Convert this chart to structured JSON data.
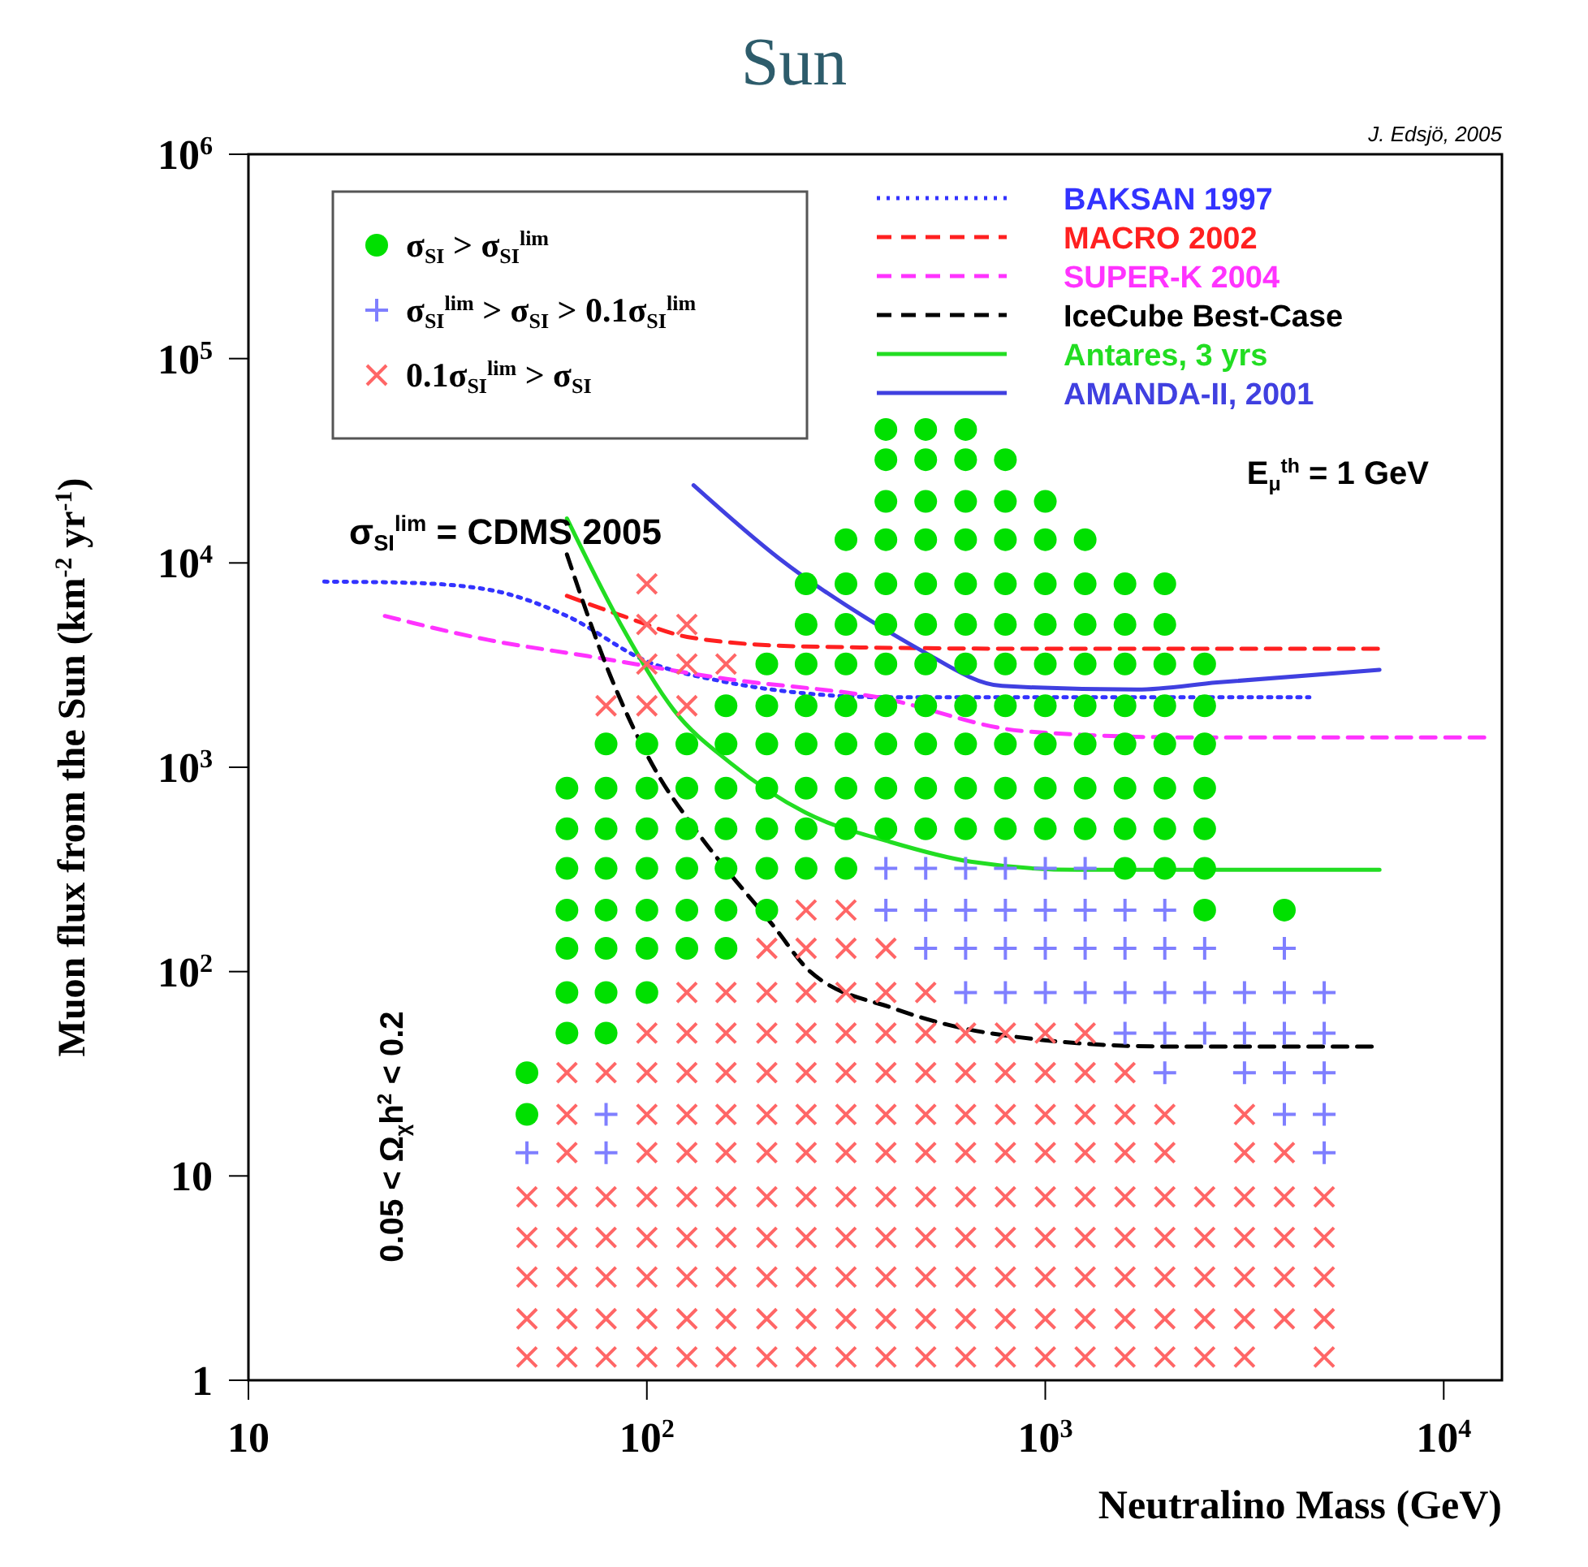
{
  "chart_data": {
    "type": "scatter",
    "title": "Sun",
    "xlabel": "Neutralino Mass (GeV)",
    "ylabel": "Muon flux from the Sun (km$^{-2}$ yr$^{-1}$)",
    "log": "xy",
    "legend": "top",
    "xlim": [
      10,
      14000
    ],
    "ylim": [
      1,
      1000000
    ],
    "xticks": [
      10,
      {
        "value": 100,
        "label": "10$^{2}$"
      },
      {
        "value": 1000,
        "label": "10$^{3}$"
      },
      {
        "value": 10000,
        "label": "10$^{4}$"
      }
    ],
    "yticks": [
      1,
      10,
      {
        "value": 100,
        "label": "10$^{2}$"
      },
      {
        "value": 1000,
        "label": "10$^{3}$"
      },
      {
        "value": 10000,
        "label": "10$^{4}$"
      },
      {
        "value": 100000,
        "label": "10$^{5}$"
      },
      {
        "value": 1000000,
        "label": "10$^{6}$"
      }
    ],
    "annotations": [
      "J. Edsjö, 2005",
      "σ$_{SI}$$^{lim}$ = CDMS 2005",
      "E$_{μ}$$^{th}$ = 1 GeV",
      "0.05 < Ω$_{χ}$h$^{2}$ < 0.2"
    ],
    "series": [
      {
        "name": "σ$_{SI}$ > σ$_{SI}$$^{lim}$",
        "color": "#00e000",
        "marker": "circle",
        "x": [
          50,
          50,
          63,
          63,
          63,
          63,
          63,
          63,
          63,
          79,
          79,
          79,
          79,
          79,
          79,
          79,
          79,
          100,
          100,
          100,
          100,
          100,
          100,
          100,
          126,
          126,
          126,
          126,
          126,
          126,
          158,
          158,
          158,
          158,
          158,
          158,
          158,
          200,
          200,
          200,
          200,
          200,
          200,
          200,
          251,
          251,
          251,
          251,
          251,
          251,
          251,
          251,
          316,
          316,
          316,
          316,
          316,
          316,
          316,
          316,
          316,
          398,
          398,
          398,
          398,
          398,
          398,
          398,
          398,
          398,
          398,
          398,
          501,
          501,
          501,
          501,
          501,
          501,
          501,
          501,
          501,
          501,
          501,
          631,
          631,
          631,
          631,
          631,
          631,
          631,
          631,
          631,
          631,
          631,
          794,
          794,
          794,
          794,
          794,
          794,
          794,
          794,
          794,
          794,
          1000,
          1000,
          1000,
          1000,
          1000,
          1000,
          1000,
          1000,
          1000,
          1259,
          1259,
          1259,
          1259,
          1259,
          1259,
          1259,
          1259,
          1585,
          1585,
          1585,
          1585,
          1585,
          1585,
          1585,
          1585,
          1995,
          1995,
          1995,
          1995,
          1995,
          1995,
          1995,
          1995,
          2512,
          2512,
          2512,
          2512,
          2512,
          2512,
          2512,
          3981
        ],
        "values": [
          20,
          32,
          50,
          79,
          130,
          200,
          320,
          500,
          790,
          50,
          79,
          130,
          200,
          320,
          500,
          790,
          1300,
          79,
          130,
          200,
          320,
          500,
          790,
          1300,
          130,
          200,
          320,
          500,
          790,
          1300,
          130,
          200,
          320,
          500,
          790,
          1300,
          2000,
          200,
          320,
          500,
          790,
          1300,
          2000,
          3200,
          320,
          500,
          790,
          1300,
          2000,
          3200,
          5000,
          7900,
          320,
          500,
          790,
          1300,
          2000,
          3200,
          5000,
          7900,
          13000,
          500,
          790,
          1300,
          2000,
          3200,
          5000,
          7900,
          13000,
          20000,
          32000,
          45000,
          500,
          790,
          1300,
          2000,
          3200,
          5000,
          7900,
          13000,
          20000,
          32000,
          45000,
          500,
          790,
          1300,
          2000,
          3200,
          5000,
          7900,
          13000,
          20000,
          32000,
          45000,
          500,
          790,
          1300,
          2000,
          3200,
          5000,
          7900,
          13000,
          20000,
          32000,
          500,
          790,
          1300,
          2000,
          3200,
          5000,
          7900,
          13000,
          20000,
          500,
          790,
          1300,
          2000,
          3200,
          5000,
          7900,
          13000,
          320,
          500,
          790,
          1300,
          2000,
          3200,
          5000,
          7900,
          320,
          500,
          790,
          1300,
          2000,
          3200,
          5000,
          7900,
          200,
          320,
          500,
          790,
          1300,
          2000,
          3200,
          200
        ]
      },
      {
        "name": "σ$_{SI}$$^{lim}$ > σ$_{SI}$ > 0.1σ$_{SI}$$^{lim}$",
        "color": "#7f7fff",
        "x": [
          50,
          79,
          79,
          398,
          398,
          501,
          501,
          501,
          631,
          631,
          631,
          631,
          794,
          794,
          794,
          794,
          1000,
          1000,
          1000,
          1000,
          1259,
          1259,
          1259,
          1259,
          1585,
          1585,
          1585,
          1585,
          1995,
          1995,
          1995,
          1995,
          1995,
          2512,
          2512,
          2512,
          3162,
          3162,
          3162,
          3981,
          3981,
          3981,
          3981,
          3981,
          5012,
          5012,
          5012,
          5012,
          5012
        ],
        "values": [
          13,
          13,
          20,
          200,
          320,
          130,
          200,
          320,
          79,
          130,
          200,
          320,
          79,
          130,
          200,
          320,
          79,
          130,
          200,
          320,
          79,
          130,
          200,
          320,
          50,
          79,
          130,
          200,
          32,
          50,
          79,
          130,
          200,
          50,
          79,
          130,
          32,
          50,
          79,
          20,
          32,
          50,
          79,
          130,
          13,
          20,
          32,
          50,
          79
        ]
      },
      {
        "name": "0.1σ$_{SI}$$^{lim}$ > σ$_{SI}$",
        "color": "#ff6666",
        "marker": "cross",
        "x": [
          50,
          50,
          50,
          50,
          50,
          63,
          63,
          63,
          63,
          63,
          63,
          63,
          63,
          79,
          79,
          79,
          79,
          79,
          79,
          79,
          100,
          100,
          100,
          100,
          100,
          100,
          100,
          100,
          100,
          100,
          100,
          100,
          100,
          126,
          126,
          126,
          126,
          126,
          126,
          126,
          126,
          126,
          126,
          126,
          126,
          126,
          158,
          158,
          158,
          158,
          158,
          158,
          158,
          158,
          158,
          158,
          158,
          200,
          200,
          200,
          200,
          200,
          200,
          200,
          200,
          200,
          200,
          200,
          251,
          251,
          251,
          251,
          251,
          251,
          251,
          251,
          251,
          251,
          251,
          251,
          316,
          316,
          316,
          316,
          316,
          316,
          316,
          316,
          316,
          316,
          316,
          316,
          398,
          398,
          398,
          398,
          398,
          398,
          398,
          398,
          398,
          398,
          398,
          501,
          501,
          501,
          501,
          501,
          501,
          501,
          501,
          501,
          501,
          631,
          631,
          631,
          631,
          631,
          631,
          631,
          631,
          631,
          794,
          794,
          794,
          794,
          794,
          794,
          794,
          794,
          794,
          1000,
          1000,
          1000,
          1000,
          1000,
          1000,
          1000,
          1000,
          1000,
          1259,
          1259,
          1259,
          1259,
          1259,
          1259,
          1259,
          1259,
          1259,
          1585,
          1585,
          1585,
          1585,
          1585,
          1585,
          1585,
          1585,
          1995,
          1995,
          1995,
          1995,
          1995,
          1995,
          1995,
          2512,
          2512,
          2512,
          2512,
          2512,
          3162,
          3162,
          3162,
          3162,
          3162,
          3162,
          3162,
          3981,
          3981,
          3981,
          3981,
          3981,
          5012,
          5012,
          5012,
          5012,
          5012
        ],
        "values": [
          1.3,
          2,
          3.2,
          5,
          7.9,
          1.3,
          2,
          3.2,
          5,
          7.9,
          13,
          20,
          32,
          1.3,
          2,
          3.2,
          5,
          7.9,
          32,
          2000,
          1.3,
          2,
          3.2,
          5,
          7.9,
          13,
          20,
          32,
          50,
          2000,
          3200,
          5000,
          7900,
          1.3,
          2,
          3.2,
          5,
          7.9,
          13,
          20,
          32,
          50,
          79,
          2000,
          3200,
          5000,
          1.3,
          2,
          3.2,
          5,
          7.9,
          13,
          20,
          32,
          50,
          79,
          3200,
          1.3,
          2,
          3.2,
          5,
          7.9,
          13,
          20,
          32,
          50,
          79,
          130,
          1.3,
          2,
          3.2,
          5,
          7.9,
          13,
          20,
          32,
          50,
          79,
          130,
          200,
          1.3,
          2,
          3.2,
          5,
          7.9,
          13,
          20,
          32,
          50,
          79,
          130,
          200,
          1.3,
          2,
          3.2,
          5,
          7.9,
          13,
          20,
          32,
          50,
          79,
          130,
          1.3,
          2,
          3.2,
          5,
          7.9,
          13,
          20,
          32,
          50,
          79,
          1.3,
          2,
          3.2,
          5,
          7.9,
          13,
          20,
          32,
          50,
          1.3,
          2,
          3.2,
          5,
          7.9,
          13,
          20,
          32,
          50,
          1.3,
          2,
          3.2,
          5,
          7.9,
          13,
          20,
          32,
          50,
          1.3,
          2,
          3.2,
          5,
          7.9,
          13,
          20,
          32,
          50,
          1.3,
          2,
          3.2,
          5,
          7.9,
          13,
          20,
          32,
          1.3,
          2,
          3.2,
          5,
          7.9,
          13,
          20,
          1.3,
          2,
          3.2,
          5,
          7.9,
          1.3,
          2,
          3.2,
          5,
          7.9,
          13,
          20,
          2,
          3.2,
          5,
          7.9,
          13,
          1.3,
          2,
          3.2,
          5,
          7.9
        ]
      },
      {
        "type": "line",
        "name": "BAKSAN 1997",
        "color": "#3333ff",
        "line_style": "dotted",
        "x": [
          15.5,
          25,
          40,
          63,
          100,
          160,
          250,
          400,
          1000,
          4600
        ],
        "values": [
          8100,
          8000,
          7400,
          5500,
          3300,
          2600,
          2300,
          2200,
          2200,
          2200
        ]
      },
      {
        "type": "line",
        "name": "MACRO 2002",
        "color": "#ff2020",
        "line_style": "dashed",
        "x": [
          63,
          87,
          130,
          250,
          1000,
          7000
        ],
        "values": [
          6900,
          5500,
          4300,
          3900,
          3800,
          3800
        ]
      },
      {
        "type": "line",
        "name": "SUPER-K 2004",
        "color": "#ff33ff",
        "line_style": "dashed",
        "x": [
          22,
          40,
          71,
          160,
          380,
          890,
          2300,
          13000
        ],
        "values": [
          5500,
          4200,
          3500,
          2700,
          2200,
          1500,
          1400,
          1400
        ]
      },
      {
        "type": "line",
        "name": "IceCube Best-Case",
        "color": "#000000",
        "line_style": "dashed",
        "x": [
          63,
          81,
          107,
          132,
          209,
          257,
          417,
          724,
          2000,
          6900
        ],
        "values": [
          11000,
          2800,
          910,
          500,
          165,
          100,
          66,
          50,
          43,
          43
        ]
      },
      {
        "type": "line",
        "name": "Antares, 3 yrs",
        "color": "#22dd22",
        "line_style": "solid",
        "x": [
          63,
          87,
          117,
          162,
          250,
          410,
          650,
          1200,
          6900
        ],
        "values": [
          16500,
          4800,
          1900,
          1050,
          600,
          430,
          345,
          315,
          315
        ]
      },
      {
        "type": "line",
        "name": "AMANDA-II, 2001",
        "color": "#4040e0",
        "line_style": "solid",
        "x": [
          131,
          215,
          413,
          480,
          780,
          1700,
          2700,
          6900
        ],
        "values": [
          24000,
          10500,
          4500,
          3800,
          2500,
          2400,
          2600,
          3000
        ]
      }
    ]
  }
}
